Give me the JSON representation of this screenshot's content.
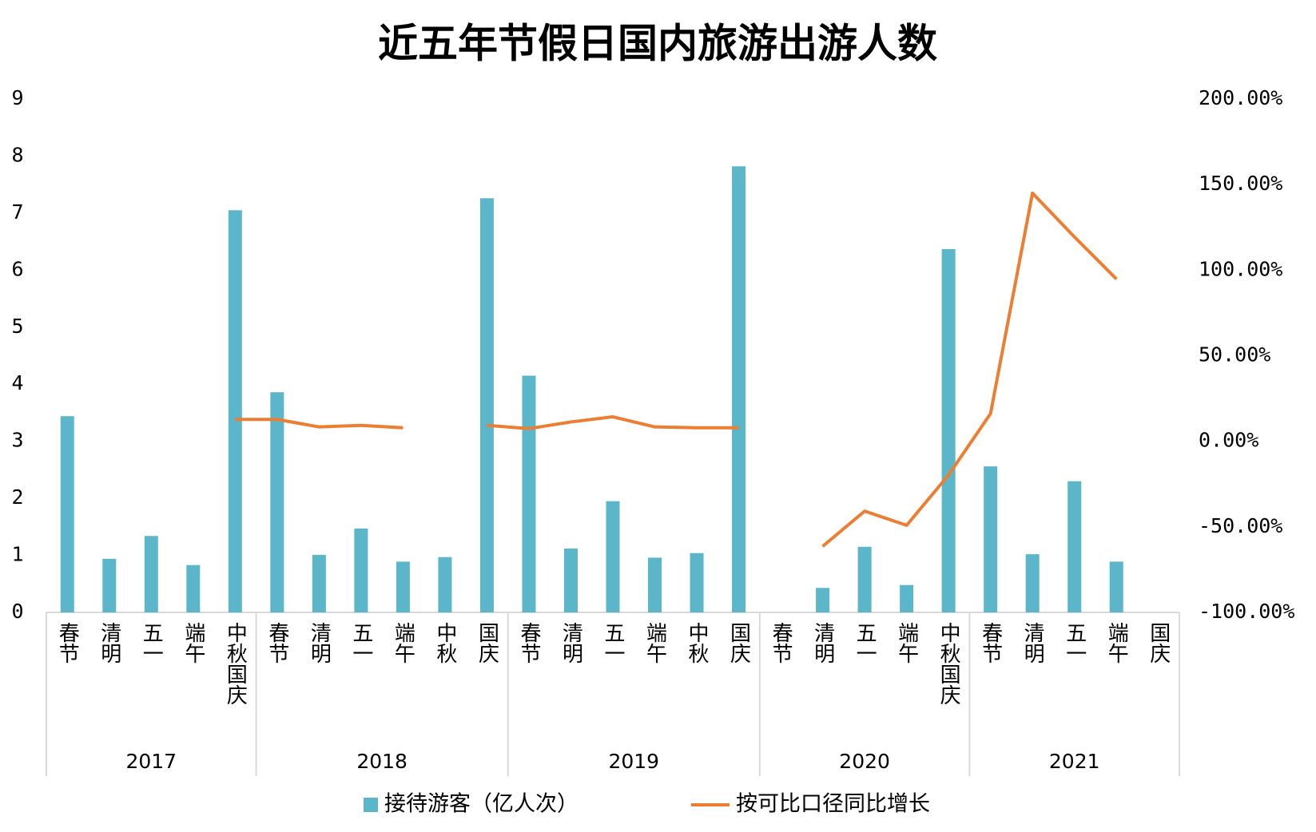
{
  "chart_data": {
    "type": "bar-line",
    "title": "近五年节假日国内旅游出游人数",
    "groups": [
      {
        "label": "2017",
        "categories": [
          "春节",
          "清明",
          "五一",
          "端午",
          "中秋国庆"
        ]
      },
      {
        "label": "2018",
        "categories": [
          "春节",
          "清明",
          "五一",
          "端午",
          "中秋",
          "国庆"
        ]
      },
      {
        "label": "2019",
        "categories": [
          "春节",
          "清明",
          "五一",
          "端午",
          "中秋",
          "国庆"
        ]
      },
      {
        "label": "2020",
        "categories": [
          "春节",
          "清明",
          "五一",
          "端午",
          "中秋国庆"
        ]
      },
      {
        "label": "2021",
        "categories": [
          "春节",
          "清明",
          "五一",
          "端午",
          "国庆"
        ]
      }
    ],
    "series": [
      {
        "name": "接待游客（亿人次）",
        "type": "bar",
        "color": "#5bb6c9",
        "values": [
          3.44,
          0.94,
          1.34,
          0.83,
          7.05,
          3.86,
          1.01,
          1.47,
          0.89,
          0.97,
          7.26,
          4.15,
          1.12,
          1.95,
          0.96,
          1.04,
          7.82,
          null,
          0.43,
          1.15,
          0.48,
          6.37,
          2.56,
          1.02,
          2.3,
          0.89,
          null
        ]
      },
      {
        "name": "按可比口径同比增长",
        "type": "line",
        "axis": "y2",
        "color": "#ed7d31",
        "values": [
          null,
          null,
          null,
          null,
          12.8,
          12.8,
          8.4,
          9.3,
          7.9,
          null,
          9.3,
          7.4,
          11.3,
          14.3,
          8.4,
          7.9,
          7.9,
          null,
          -61.4,
          -40.8,
          -49.1,
          -19.7,
          16.2,
          145,
          119.4,
          94.8,
          null
        ]
      }
    ],
    "ylim": [
      0,
      9
    ],
    "yticks": [
      0,
      1,
      2,
      3,
      4,
      5,
      6,
      7,
      8,
      9
    ],
    "y2lim": [
      -100,
      200
    ],
    "y2ticks": [
      {
        "value": -100,
        "label": "-100.00%"
      },
      {
        "value": -50,
        "label": "-50.00%"
      },
      {
        "value": 0,
        "label": "0.00%"
      },
      {
        "value": 50,
        "label": "50.00%"
      },
      {
        "value": 100,
        "label": "100.00%"
      },
      {
        "value": 150,
        "label": "150.00%"
      },
      {
        "value": 200,
        "label": "200.00%"
      }
    ],
    "legend": "bottom"
  }
}
